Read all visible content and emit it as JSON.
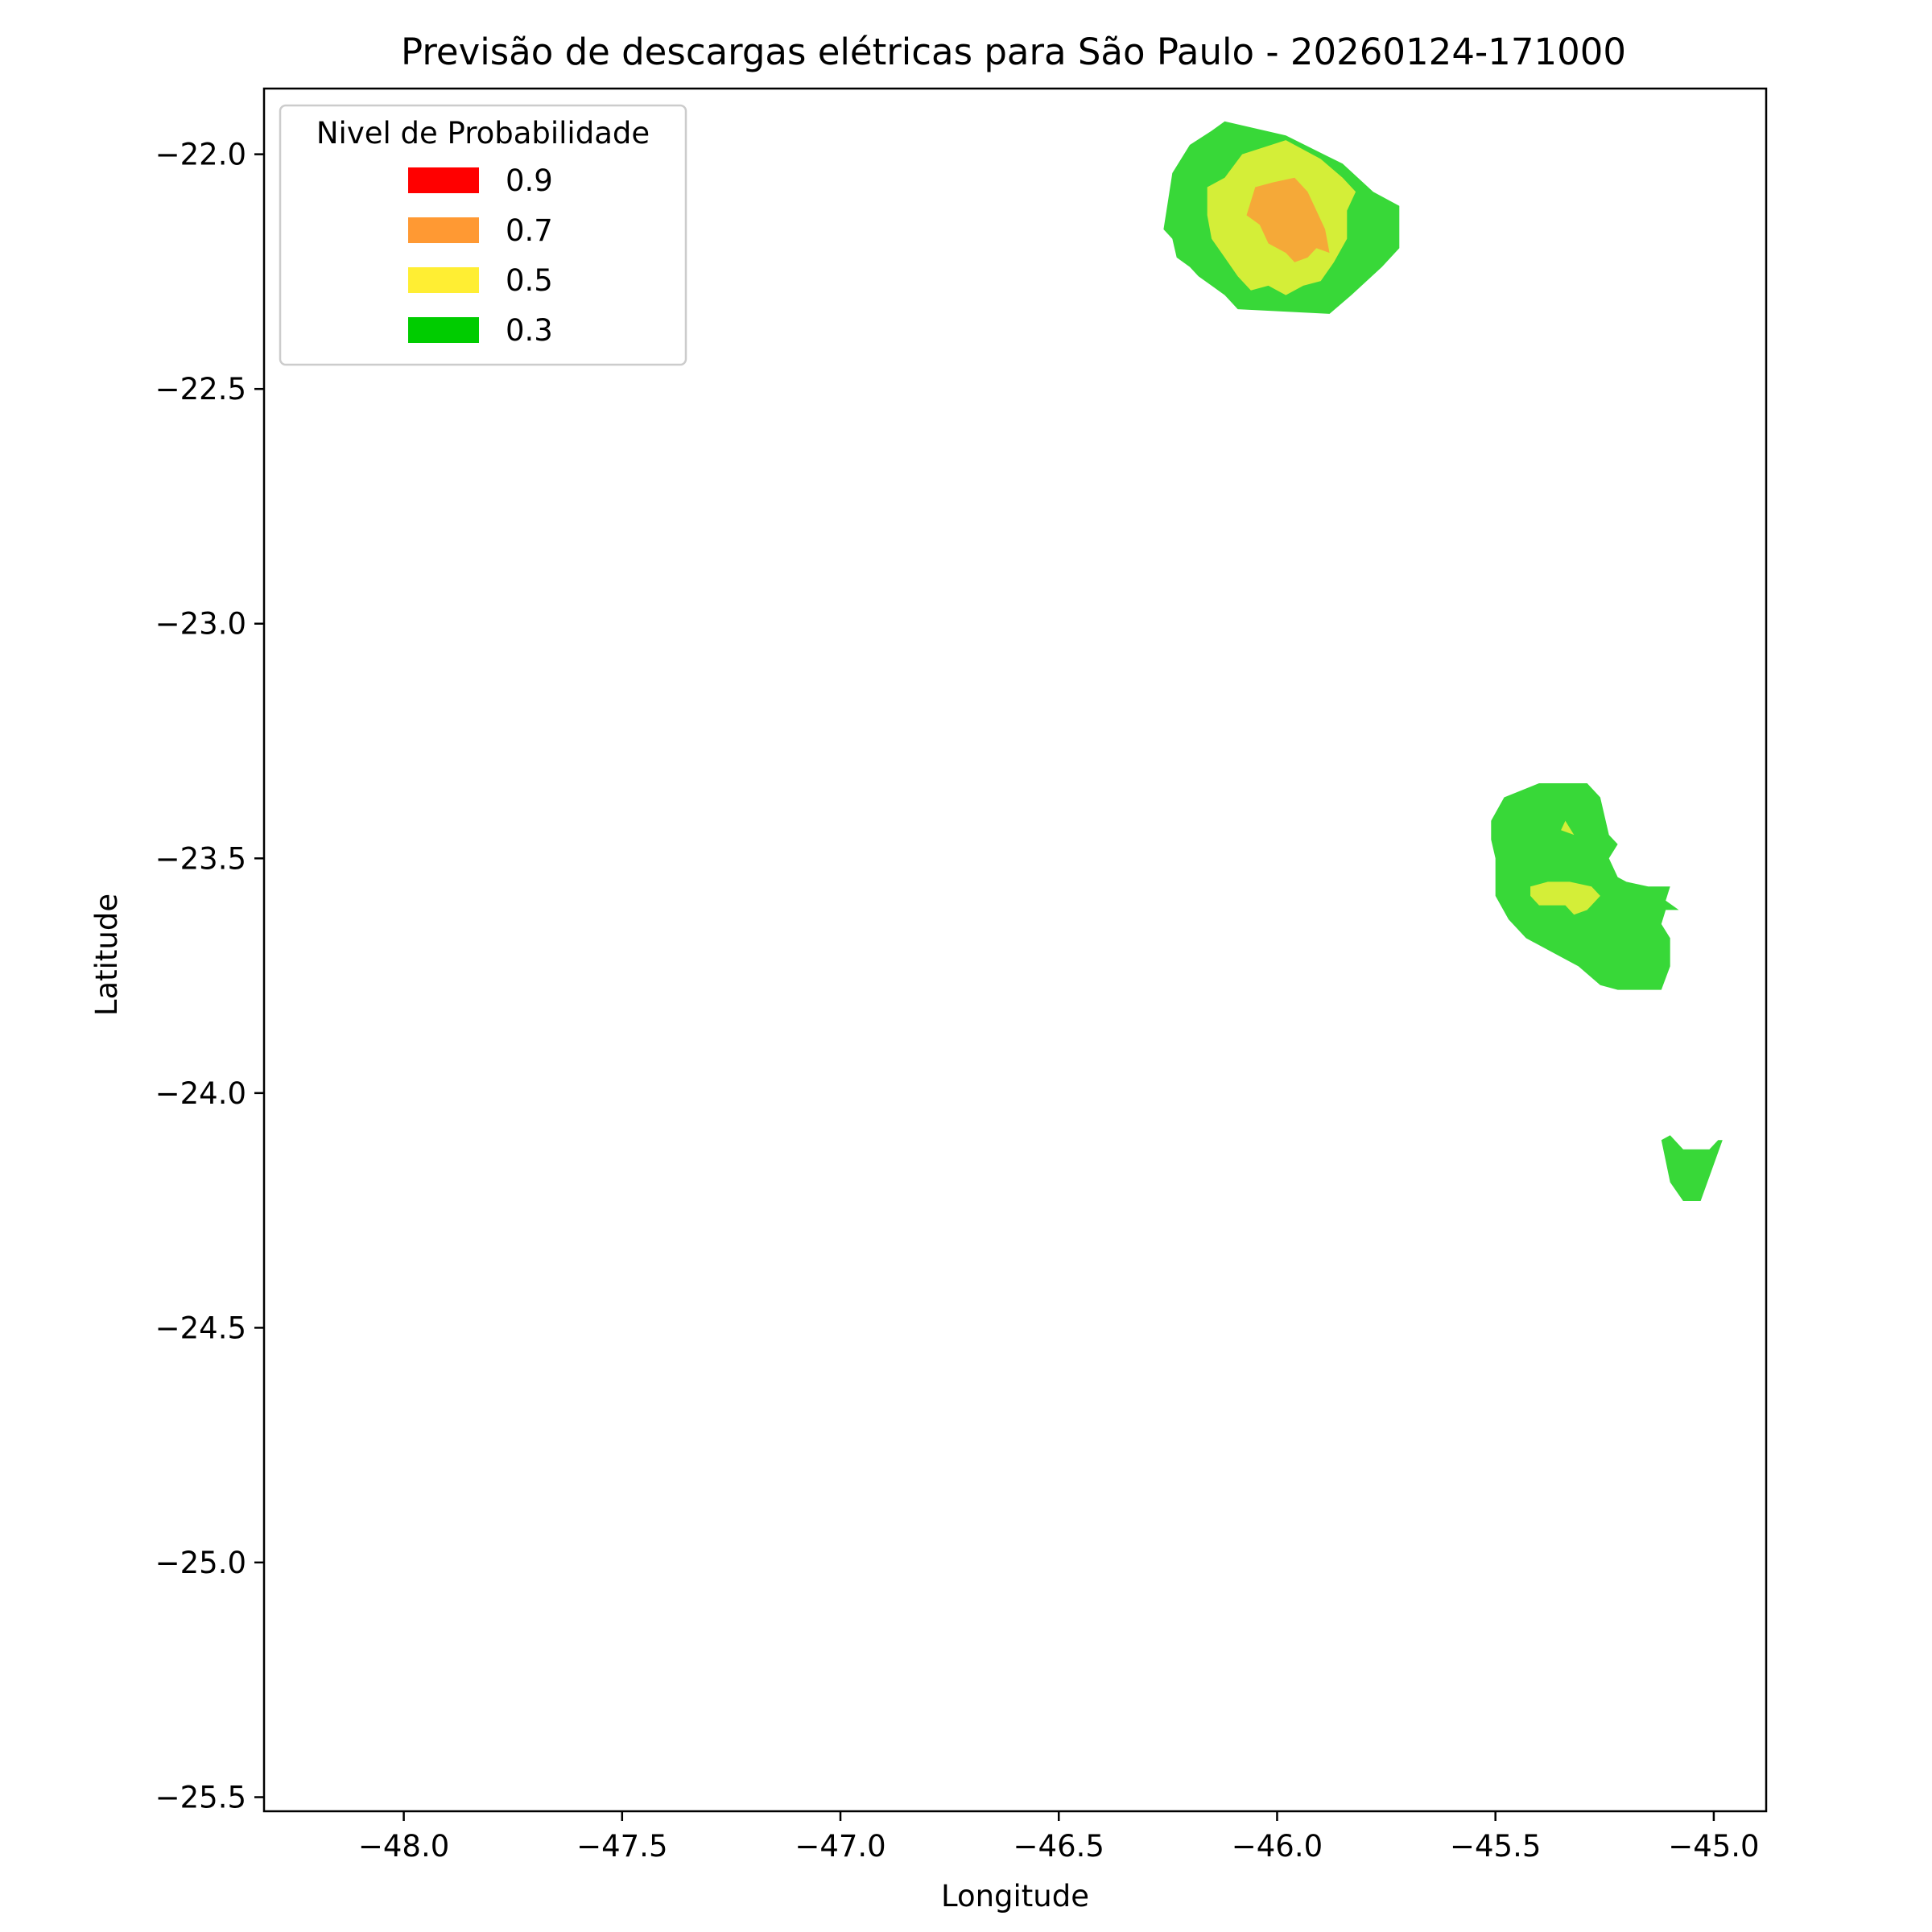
{
  "chart_data": {
    "type": "contour",
    "title": "Previsão de descargas elétricas para São Paulo - 20260124-171000",
    "xlabel": "Longitude",
    "ylabel": "Latitude",
    "xlim": [
      -48.32,
      -44.88
    ],
    "ylim": [
      -25.53,
      -21.86
    ],
    "xticks": [
      -48.0,
      -47.5,
      -47.0,
      -46.5,
      -46.0,
      -45.5,
      -45.0
    ],
    "yticks": [
      -22.0,
      -22.5,
      -23.0,
      -23.5,
      -24.0,
      -24.5,
      -25.0,
      -25.5
    ],
    "grid": false,
    "legend": {
      "title": "Nivel de Probabilidade",
      "position": "upper-left",
      "entries": [
        {
          "label": "0.9",
          "color": "#ff0000"
        },
        {
          "label": "0.7",
          "color": "#ff9933"
        },
        {
          "label": "0.5",
          "color": "#ffee33"
        },
        {
          "label": "0.3",
          "color": "#00cc00"
        }
      ]
    },
    "regions": [
      {
        "level": "0.3",
        "color": "#38d838",
        "points": [
          [
            -46.12,
            -21.93
          ],
          [
            -45.98,
            -21.96
          ],
          [
            -45.85,
            -22.02
          ],
          [
            -45.78,
            -22.08
          ],
          [
            -45.72,
            -22.11
          ],
          [
            -45.72,
            -22.2
          ],
          [
            -45.76,
            -22.24
          ],
          [
            -45.83,
            -22.3
          ],
          [
            -45.88,
            -22.34
          ],
          [
            -46.09,
            -22.33
          ],
          [
            -46.12,
            -22.3
          ],
          [
            -46.15,
            -22.28
          ],
          [
            -46.18,
            -22.26
          ],
          [
            -46.2,
            -22.24
          ],
          [
            -46.23,
            -22.22
          ],
          [
            -46.24,
            -22.18
          ],
          [
            -46.26,
            -22.16
          ],
          [
            -46.25,
            -22.1
          ],
          [
            -46.24,
            -22.04
          ],
          [
            -46.2,
            -21.98
          ],
          [
            -46.15,
            -21.95
          ]
        ]
      },
      {
        "level": "0.5",
        "color": "#d4ee38",
        "points": [
          [
            -46.12,
            -22.05
          ],
          [
            -46.08,
            -22.0
          ],
          [
            -45.98,
            -21.97
          ],
          [
            -45.9,
            -22.01
          ],
          [
            -45.85,
            -22.05
          ],
          [
            -45.82,
            -22.08
          ],
          [
            -45.84,
            -22.12
          ],
          [
            -45.84,
            -22.18
          ],
          [
            -45.87,
            -22.23
          ],
          [
            -45.9,
            -22.27
          ],
          [
            -45.94,
            -22.28
          ],
          [
            -45.98,
            -22.3
          ],
          [
            -46.02,
            -22.28
          ],
          [
            -46.06,
            -22.29
          ],
          [
            -46.09,
            -22.26
          ],
          [
            -46.12,
            -22.22
          ],
          [
            -46.15,
            -22.18
          ],
          [
            -46.16,
            -22.13
          ],
          [
            -46.16,
            -22.07
          ]
        ]
      },
      {
        "level": "0.7",
        "color": "#f5a938",
        "points": [
          [
            -46.05,
            -22.07
          ],
          [
            -46.01,
            -22.06
          ],
          [
            -45.96,
            -22.05
          ],
          [
            -45.93,
            -22.08
          ],
          [
            -45.91,
            -22.12
          ],
          [
            -45.89,
            -22.16
          ],
          [
            -45.88,
            -22.21
          ],
          [
            -45.91,
            -22.2
          ],
          [
            -45.93,
            -22.22
          ],
          [
            -45.96,
            -22.23
          ],
          [
            -45.98,
            -22.21
          ],
          [
            -46.02,
            -22.19
          ],
          [
            -46.04,
            -22.15
          ],
          [
            -46.07,
            -22.13
          ]
        ]
      },
      {
        "level": "0.3",
        "color": "#38d838",
        "points": [
          [
            -45.48,
            -23.37
          ],
          [
            -45.4,
            -23.34
          ],
          [
            -45.29,
            -23.34
          ],
          [
            -45.26,
            -23.37
          ],
          [
            -45.24,
            -23.45
          ],
          [
            -45.22,
            -23.47
          ],
          [
            -45.24,
            -23.5
          ],
          [
            -45.22,
            -23.54
          ],
          [
            -45.2,
            -23.55
          ],
          [
            -45.15,
            -23.56
          ],
          [
            -45.1,
            -23.56
          ],
          [
            -45.11,
            -23.59
          ],
          [
            -45.08,
            -23.61
          ],
          [
            -45.11,
            -23.61
          ],
          [
            -45.12,
            -23.64
          ],
          [
            -45.1,
            -23.67
          ],
          [
            -45.1,
            -23.73
          ],
          [
            -45.12,
            -23.78
          ],
          [
            -45.22,
            -23.78
          ],
          [
            -45.26,
            -23.77
          ],
          [
            -45.31,
            -23.73
          ],
          [
            -45.37,
            -23.7
          ],
          [
            -45.43,
            -23.67
          ],
          [
            -45.47,
            -23.63
          ],
          [
            -45.5,
            -23.58
          ],
          [
            -45.5,
            -23.5
          ],
          [
            -45.51,
            -23.46
          ],
          [
            -45.51,
            -23.42
          ]
        ]
      },
      {
        "level": "0.5",
        "color": "#d4ee38",
        "points": [
          [
            -45.42,
            -23.56
          ],
          [
            -45.38,
            -23.55
          ],
          [
            -45.33,
            -23.55
          ],
          [
            -45.28,
            -23.56
          ],
          [
            -45.26,
            -23.58
          ],
          [
            -45.28,
            -23.6
          ],
          [
            -45.29,
            -23.61
          ],
          [
            -45.32,
            -23.62
          ],
          [
            -45.34,
            -23.6
          ],
          [
            -45.4,
            -23.6
          ],
          [
            -45.42,
            -23.58
          ]
        ]
      },
      {
        "level": "0.5",
        "color": "#d4ee38",
        "points": [
          [
            -45.34,
            -23.42
          ],
          [
            -45.32,
            -23.45
          ],
          [
            -45.35,
            -23.44
          ]
        ]
      },
      {
        "level": "0.3",
        "color": "#38d838",
        "points": [
          [
            -45.12,
            -24.1
          ],
          [
            -45.1,
            -24.09
          ],
          [
            -45.07,
            -24.12
          ],
          [
            -45.01,
            -24.12
          ],
          [
            -44.99,
            -24.1
          ],
          [
            -44.98,
            -24.1
          ],
          [
            -45.03,
            -24.23
          ],
          [
            -45.07,
            -24.23
          ],
          [
            -45.1,
            -24.19
          ]
        ]
      }
    ]
  }
}
